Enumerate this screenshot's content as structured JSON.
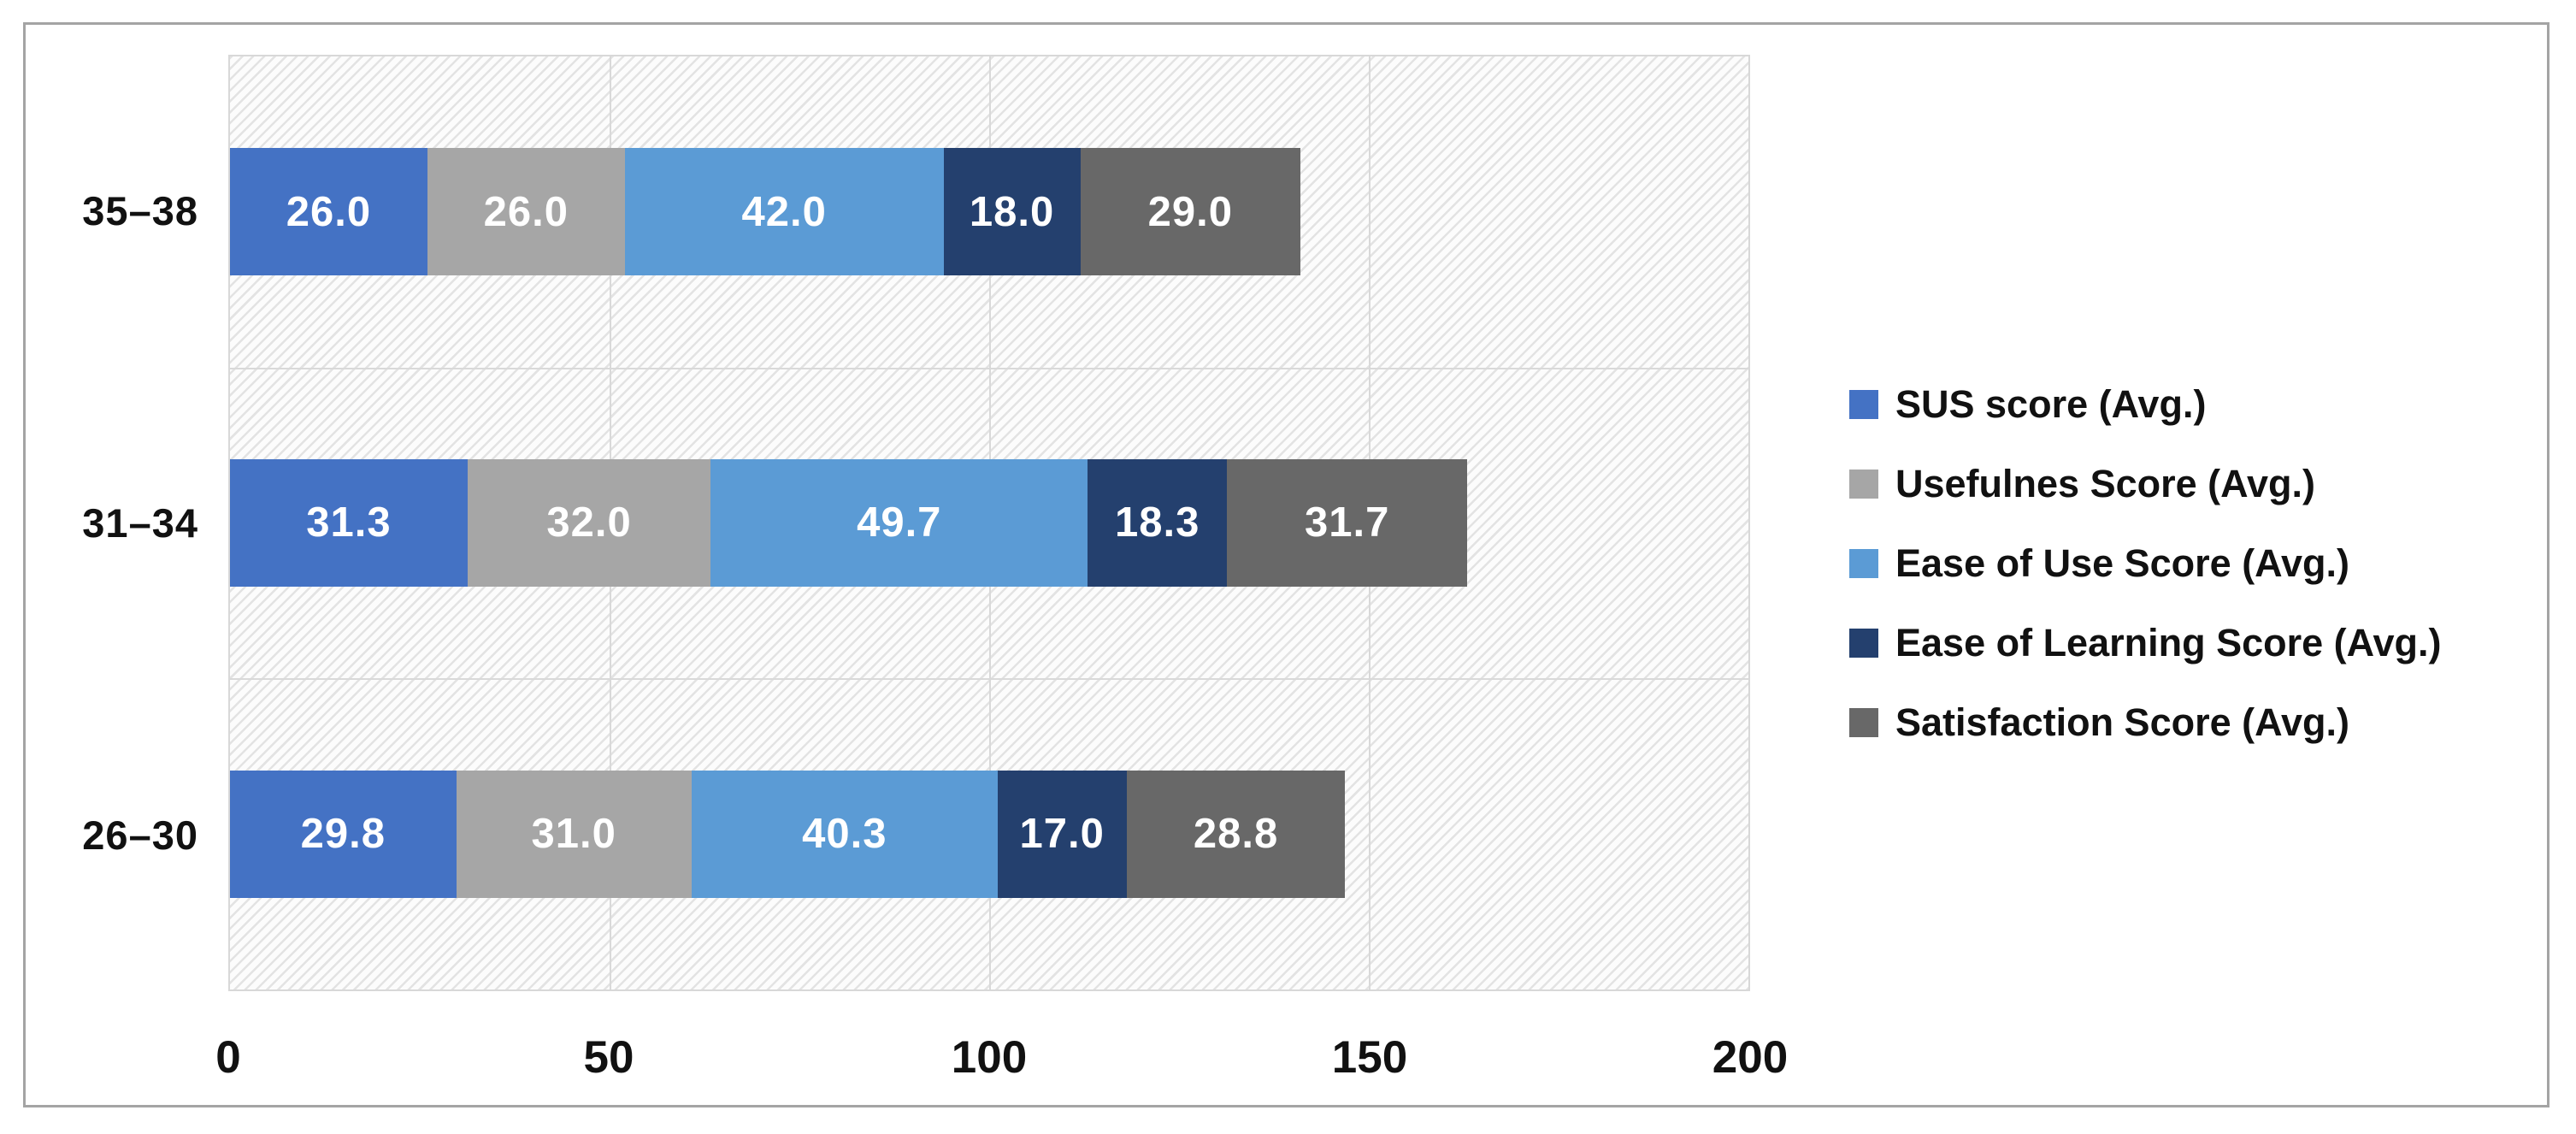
{
  "figure": {
    "border_color": "#a4a4a4",
    "background": "#ffffff",
    "plot_background": "diagonal-hatch"
  },
  "chart_data": {
    "type": "bar",
    "orientation": "horizontal",
    "stacked": true,
    "title": "",
    "xlabel": "",
    "ylabel": "",
    "xlim": [
      0,
      200
    ],
    "x_ticks": [
      "0",
      "50",
      "100",
      "150",
      "200"
    ],
    "grid": true,
    "legend_position": "right",
    "categories": [
      "35–38",
      "31–34",
      "26–30"
    ],
    "series": [
      {
        "name": "SUS score (Avg.)",
        "color": "#4472C4",
        "values": [
          26.0,
          31.3,
          29.8
        ]
      },
      {
        "name": "Usefulnes Score (Avg.)",
        "color": "#A6A6A6",
        "values": [
          26.0,
          32.0,
          31.0
        ]
      },
      {
        "name": "Ease of Use Score (Avg.)",
        "color": "#5B9BD5",
        "values": [
          42.0,
          49.7,
          40.3
        ]
      },
      {
        "name": "Ease of Learning Score (Avg.)",
        "color": "#24406E",
        "values": [
          18.0,
          18.3,
          17.0
        ]
      },
      {
        "name": "Satisfaction Score (Avg.)",
        "color": "#686868",
        "values": [
          29.0,
          31.7,
          28.8
        ]
      }
    ],
    "data_label_format": "0.0",
    "data_label_color": "#ffffff"
  }
}
